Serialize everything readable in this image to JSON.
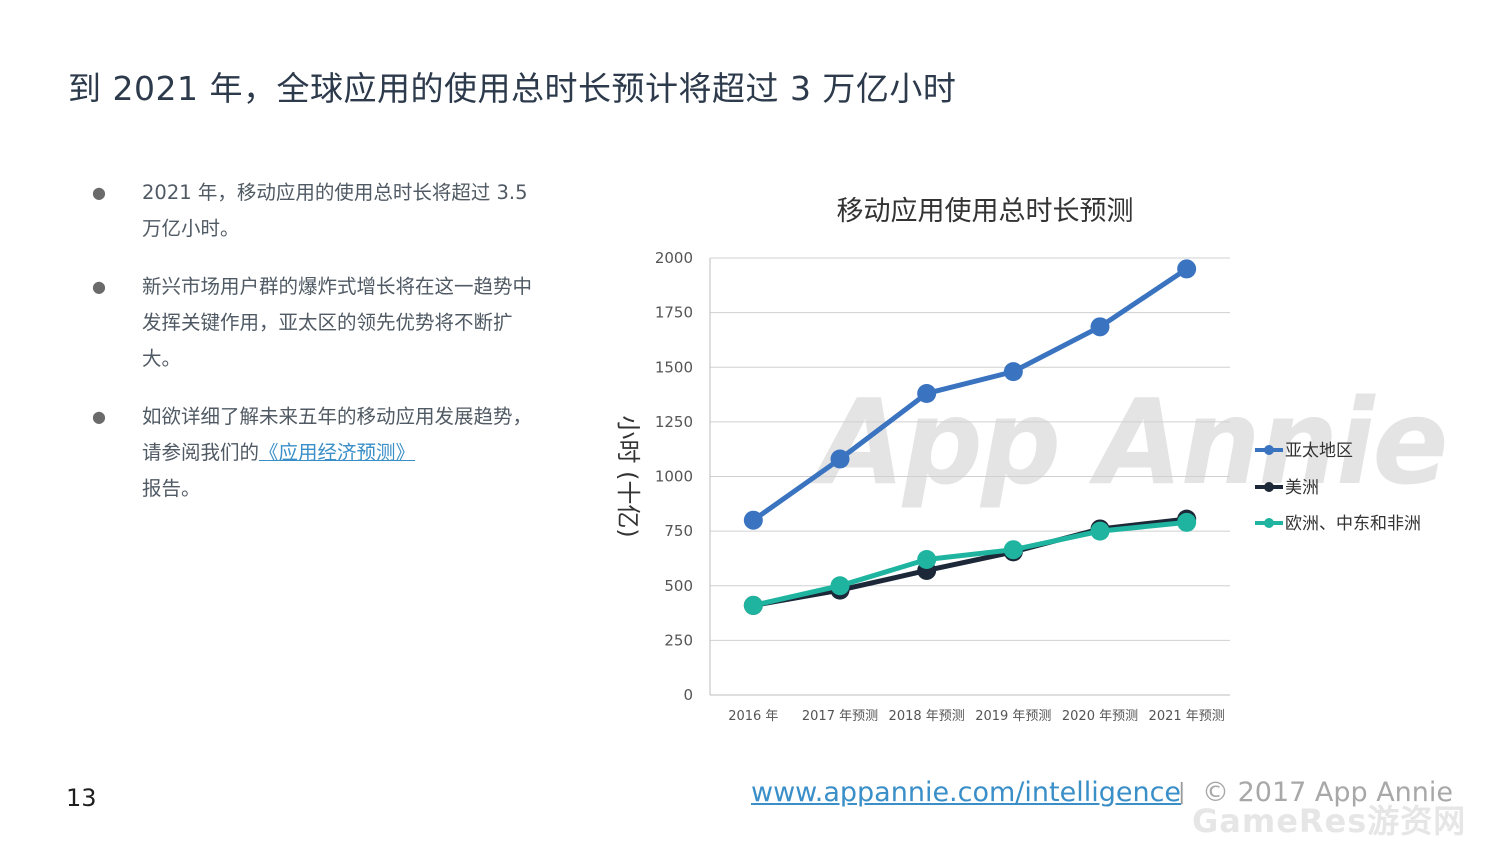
{
  "slide": {
    "title": "到 2021 年，全球应用的使用总时长预计将超过 3 万亿小时",
    "page_number": "13"
  },
  "bullets": [
    {
      "text": "2021 年，移动应用的使用总时长将超过 3.5 万亿小时。"
    },
    {
      "text": "新兴市场用户群的爆炸式增长将在这一趋势中发挥关键作用，亚太区的领先优势将不断扩大。"
    },
    {
      "text_before": "如欲详细了解未来五年的移动应用发展趋势，请参阅我们的",
      "link": "《应用经济预测》",
      "text_after": "报告。"
    }
  ],
  "watermark": {
    "chart_logo": "App Annie",
    "corner": "GameRes游资网"
  },
  "footer": {
    "url": "www.appannie.com/intelligence",
    "separator": "|",
    "copyright": "© 2017 App Annie"
  },
  "colors": {
    "apac": "#3a73c0",
    "americas": "#1c2838",
    "emea": "#1fb4a0",
    "link": "#3a8fc8",
    "title": "#2c3a4b"
  },
  "chart_data": {
    "type": "line",
    "title": "移动应用使用总时长预测",
    "xlabel": "",
    "ylabel": "小时 (十亿)",
    "categories": [
      "2016 年",
      "2017 年预测",
      "2018 年预测",
      "2019 年预测",
      "2020 年预测",
      "2021 年预测"
    ],
    "ylim": [
      0,
      2000
    ],
    "yticks": [
      0,
      250,
      500,
      750,
      1000,
      1250,
      1500,
      1750,
      2000
    ],
    "grid": true,
    "legend_position": "right",
    "series": [
      {
        "name": "亚太地区",
        "color": "#3a73c0",
        "values": [
          800,
          1080,
          1380,
          1480,
          1685,
          1950
        ]
      },
      {
        "name": "美洲",
        "color": "#1c2838",
        "values": [
          410,
          480,
          570,
          655,
          760,
          805
        ]
      },
      {
        "name": "欧洲、中东和非洲",
        "color": "#1fb4a0",
        "values": [
          410,
          500,
          620,
          665,
          750,
          790
        ]
      }
    ]
  }
}
